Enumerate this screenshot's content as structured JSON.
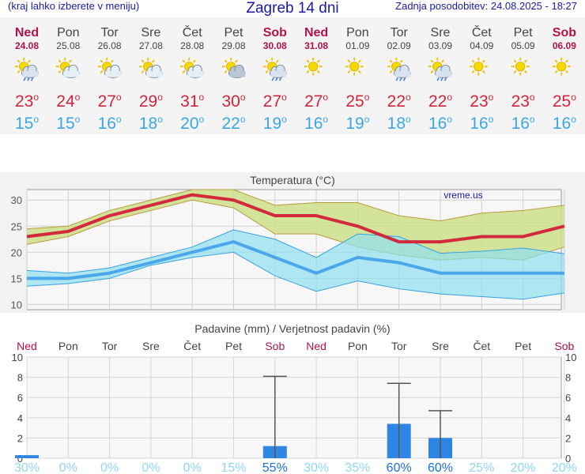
{
  "header": {
    "menu_note": "(kraj lahko izberete v meniju)",
    "title": "Zagreb 14 dni",
    "updated": "Zadnja posodobitev: 24.08.2025 - 18:27"
  },
  "colors": {
    "max_line": "#d2293d",
    "min_line": "#4aa8ea",
    "max_band": "#cce08a",
    "min_band": "#8fdff0",
    "bar": "#2f85e4",
    "weekend": "#b0124a"
  },
  "days": [
    {
      "name": "Ned",
      "date": "24.08",
      "weekend": true,
      "icon": "sun-cloud-rain-icon",
      "max": "23",
      "min": "15"
    },
    {
      "name": "Pon",
      "date": "25.08",
      "weekend": false,
      "icon": "sun-cloud-icon",
      "max": "24",
      "min": "15"
    },
    {
      "name": "Tor",
      "date": "26.08",
      "weekend": false,
      "icon": "sun-cloud-icon",
      "max": "27",
      "min": "16"
    },
    {
      "name": "Sre",
      "date": "27.08",
      "weekend": false,
      "icon": "sun-cloud-icon",
      "max": "29",
      "min": "18"
    },
    {
      "name": "Čet",
      "date": "28.08",
      "weekend": false,
      "icon": "sun-cloud-icon",
      "max": "31",
      "min": "20"
    },
    {
      "name": "Pet",
      "date": "29.08",
      "weekend": false,
      "icon": "cloudy-icon",
      "max": "30",
      "min": "22"
    },
    {
      "name": "Sob",
      "date": "30.08",
      "weekend": true,
      "icon": "sun-cloud-rain-icon",
      "max": "27",
      "min": "19"
    },
    {
      "name": "Ned",
      "date": "31.08",
      "weekend": true,
      "icon": "sun-icon",
      "max": "27",
      "min": "16"
    },
    {
      "name": "Pon",
      "date": "01.09",
      "weekend": false,
      "icon": "sun-icon",
      "max": "25",
      "min": "19"
    },
    {
      "name": "Tor",
      "date": "02.09",
      "weekend": false,
      "icon": "sun-cloud-rain-icon",
      "max": "22",
      "min": "18"
    },
    {
      "name": "Sre",
      "date": "03.09",
      "weekend": false,
      "icon": "sun-cloud-rain-icon",
      "max": "22",
      "min": "16"
    },
    {
      "name": "Čet",
      "date": "04.09",
      "weekend": false,
      "icon": "sun-icon",
      "max": "23",
      "min": "16"
    },
    {
      "name": "Pet",
      "date": "05.09",
      "weekend": false,
      "icon": "sun-icon",
      "max": "23",
      "min": "16"
    },
    {
      "name": "Sob",
      "date": "06.09",
      "weekend": true,
      "icon": "sun-icon",
      "max": "25",
      "min": "16"
    }
  ],
  "chart_data": [
    {
      "type": "line",
      "title": "Temperatura (°C)",
      "watermark": "vreme.us",
      "ylim": [
        9,
        32
      ],
      "yticks": [
        10,
        15,
        20,
        25,
        30
      ],
      "grid": true,
      "series": [
        {
          "values": [
            23,
            24,
            27,
            29,
            31,
            30,
            27,
            27,
            25,
            22,
            22,
            23,
            23,
            25
          ],
          "band_high": [
            24.5,
            25,
            28,
            30,
            32,
            32,
            29,
            29.5,
            29.5,
            27,
            26,
            27.5,
            28,
            29
          ],
          "band_low": [
            21.5,
            23,
            26,
            28,
            30,
            28.5,
            23.5,
            23.5,
            21,
            19.5,
            18.5,
            19,
            18.5,
            21
          ]
        },
        {
          "values": [
            15,
            15,
            16,
            18,
            20,
            22,
            19,
            16,
            19,
            18,
            16,
            16,
            16,
            16
          ],
          "band_high": [
            16.5,
            16,
            17,
            19,
            21,
            24.3,
            22.5,
            19,
            23.5,
            23,
            19.8,
            20.2,
            20.8,
            19.7
          ],
          "band_low": [
            13.5,
            14,
            15,
            17.5,
            19,
            20,
            15.5,
            12.5,
            14.5,
            13,
            12,
            11.5,
            11,
            12.2
          ]
        }
      ]
    },
    {
      "type": "bar",
      "title": "Padavine (mm) / Verjetnost padavin (%)",
      "categories": [
        "Ned",
        "Pon",
        "Tor",
        "Sre",
        "Čet",
        "Pet",
        "Sob",
        "Ned",
        "Pon",
        "Tor",
        "Sre",
        "Čet",
        "Pet",
        "Sob"
      ],
      "ylim": [
        0,
        10
      ],
      "yticks": [
        0,
        2,
        4,
        6,
        8,
        10
      ],
      "values": [
        0.3,
        0,
        0,
        0,
        0,
        0,
        1.2,
        0,
        0,
        3.4,
        2.0,
        0,
        0,
        0
      ],
      "error_high": [
        0.3,
        0,
        0,
        0,
        0,
        0,
        8.1,
        0,
        0,
        7.4,
        4.7,
        0,
        0,
        0
      ],
      "probabilities": [
        "30%",
        "0%",
        "0%",
        "0%",
        "0%",
        "15%",
        "55%",
        "30%",
        "35%",
        "60%",
        "60%",
        "25%",
        "20%",
        "20%"
      ]
    }
  ]
}
